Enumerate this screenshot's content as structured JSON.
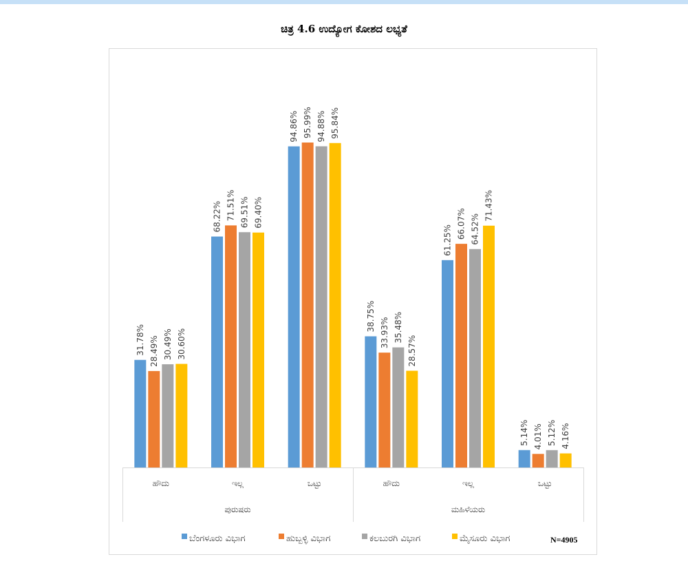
{
  "chart_data": {
    "type": "bar",
    "title": "ಚಿತ್ರ 4.6 ಉದ್ಯೋಗ ಕೋಶದ ಲಭ್ಯತೆ",
    "groups": [
      {
        "name": "ಪುರುಷರು",
        "categories": [
          "ಹೌದು",
          "ಇಲ್ಲ",
          "ಒಟ್ಟು"
        ]
      },
      {
        "name": "ಮಹಿಳೆಯರು",
        "categories": [
          "ಹೌದು",
          "ಇಲ್ಲ",
          "ಒಟ್ಟು"
        ]
      }
    ],
    "series": [
      {
        "name": "ಬೆಂಗಳೂರು ವಿಭಾಗ",
        "color": "#5b9bd5",
        "values": [
          31.78,
          68.22,
          94.86,
          38.75,
          61.25,
          5.14
        ],
        "labels": [
          "31.78%",
          "68.22%",
          "94.86%",
          "38.75%",
          "61.25%",
          "5.14%"
        ]
      },
      {
        "name": "ಹುಬ್ಬಳ್ಳಿ ವಿಭಾಗ",
        "color": "#ed7d31",
        "values": [
          28.49,
          71.51,
          95.99,
          33.93,
          66.07,
          4.01
        ],
        "labels": [
          "28.49%",
          "71.51%",
          "95.99%",
          "33.93%",
          "66.07%",
          "4.01%"
        ]
      },
      {
        "name": "ಕಲಬುರಗಿ ವಿಭಾಗ",
        "color": "#a5a5a5",
        "values": [
          30.49,
          69.51,
          94.88,
          35.48,
          64.52,
          5.12
        ],
        "labels": [
          "30.49%",
          "69.51%",
          "94.88%",
          "35.48%",
          "64.52%",
          "5.12%"
        ]
      },
      {
        "name": "ಮೈಸೂರು ವಿಭಾಗ",
        "color": "#ffc000",
        "values": [
          30.6,
          69.4,
          95.84,
          28.57,
          71.43,
          4.16
        ],
        "labels": [
          "30.60%",
          "69.40%",
          "95.84%",
          "28.57%",
          "71.43%",
          "4.16%"
        ]
      }
    ],
    "ylim": [
      0,
      100
    ],
    "grid": false,
    "legend": "bottom",
    "note": "N=4905"
  }
}
